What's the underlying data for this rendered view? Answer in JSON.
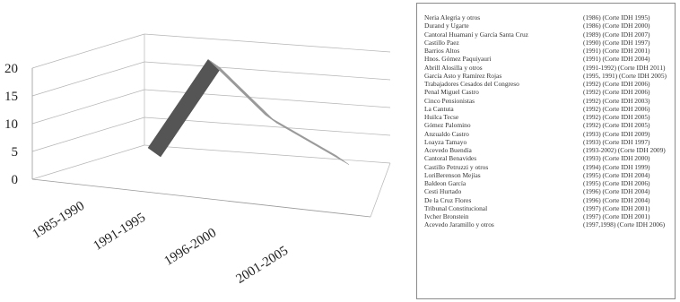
{
  "chart_data": {
    "type": "line",
    "categories": [
      "1985-1990",
      "1991-1995",
      "1996-2000",
      "2001-2005"
    ],
    "values": [
      0,
      19,
      8,
      1
    ],
    "yticks": [
      "20",
      "15",
      "10",
      "5",
      "0"
    ],
    "ylim": [
      0,
      20
    ],
    "series_color": "#9a9a9a",
    "series_side_color": "#555555",
    "grid": true
  },
  "legend": {
    "rows": [
      {
        "case": "Neria Alegria y otros",
        "years": "(1986) (Corte IDH 1995)"
      },
      {
        "case": "Durand y Ugarte",
        "years": "(1986) (Corte IDH 2000)"
      },
      {
        "case": "Cantoral Huamaní y García Santa Cruz",
        "years": "(1989) (Corte IDH 2007)"
      },
      {
        "case": "Castillo Paez",
        "years": "(1990) (Corte IDH 1997)"
      },
      {
        "case": "Barrios Altos",
        "years": "(1991) (Corte IDH 2001)"
      },
      {
        "case": "Hnos. Gómez Paquiyauri",
        "years": "(1991) (Corte IDH 2004)"
      },
      {
        "case": "Abrill Alosilla y otros",
        "years": "(1991-1992) (Corte IDH 2011)"
      },
      {
        "case": "García Asto y Ramírez Rojas",
        "years": "(1995, 1991) (Corte IDH 2005)"
      },
      {
        "case": "Trabajadores Cesados del Congreso",
        "years": "(1992) (Corte IDH 2006)"
      },
      {
        "case": "Penal Miguel Castro",
        "years": "(1992) (Corte IDH 2006)"
      },
      {
        "case": "Cinco Pensionistas",
        "years": "(1992) (Corte IDH 2003)"
      },
      {
        "case": "La Cantuta",
        "years": "(1992) (Corte IDH 2006)"
      },
      {
        "case": "Huilca Tecse",
        "years": "(1992) (Corte IDH 2005)"
      },
      {
        "case": "Gómez Palomino",
        "years": "(1992) (Corte IDH 2005)"
      },
      {
        "case": "Anzualdo Castro",
        "years": "(1993) (Corte IDH 2009)"
      },
      {
        "case": "Loayza Tamayo",
        "years": "(1993) (Corte IDH 1997)"
      },
      {
        "case": "Acevedo Buendía",
        "years": "(1993-2002) (Corte IDH 2009)"
      },
      {
        "case": "Cantoral Benavides",
        "years": "(1993) (Corte IDH 2000)"
      },
      {
        "case": "Castillo Petruzzi y otros",
        "years": "(1994) (Corte IDH 1999)"
      },
      {
        "case": "LoriBerenson Mejías",
        "years": "(1995) (Corte IDH 2004)"
      },
      {
        "case": "Baldeon García",
        "years": "(1995) (Corte IDH 2006)"
      },
      {
        "case": "Cesti Hurtado",
        "years": "(1996) (Corte IDH 2004)"
      },
      {
        "case": "De la Cruz Flores",
        "years": "(1996) (Corte IDH 2004)"
      },
      {
        "case": "Tribunal Constitucional",
        "years": "(1997) (Corte IDH 2001)"
      },
      {
        "case": "Ivcher Bronstein",
        "years": "(1997) (Corte IDH 2001)"
      },
      {
        "case": "Acevedo Jaramillo y otros",
        "years": "(1997,1998) (Corte IDH 2006)"
      }
    ]
  }
}
